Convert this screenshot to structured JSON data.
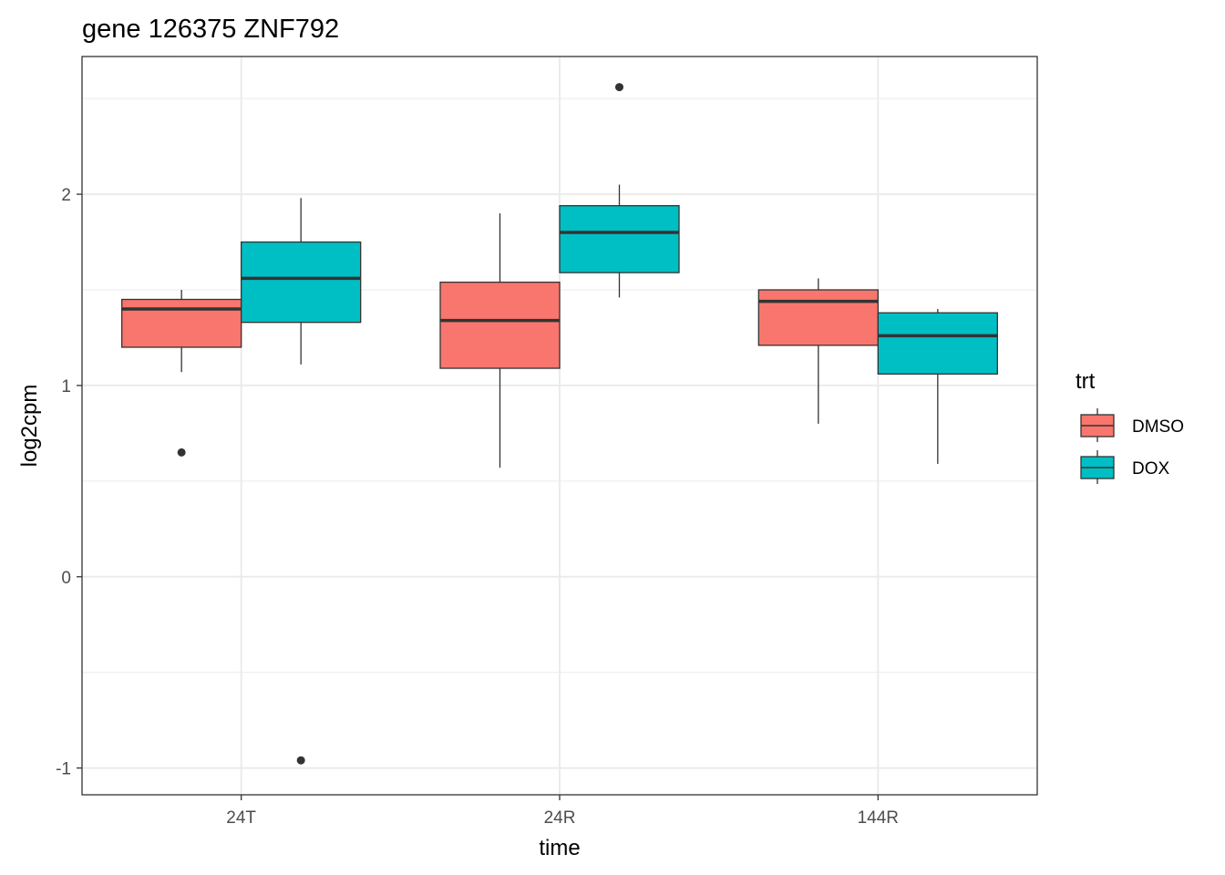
{
  "chart_data": {
    "type": "box",
    "title": "gene 126375 ZNF792",
    "xlabel": "time",
    "ylabel": "log2cpm",
    "categories": [
      "24T",
      "24R",
      "144R"
    ],
    "ylim": [
      -1.14,
      2.72
    ],
    "yticks": [
      -1,
      0,
      1,
      2
    ],
    "ytick_labels": [
      "-1",
      "0",
      "1",
      "2"
    ],
    "grid": true,
    "legend": {
      "title": "trt",
      "placement": "right"
    },
    "series": [
      {
        "name": "DMSO",
        "color": "#F8766D",
        "boxes": [
          {
            "category": "24T",
            "whisker_low": 1.07,
            "q1": 1.2,
            "median": 1.4,
            "q3": 1.45,
            "whisker_high": 1.5,
            "outliers": [
              0.65
            ]
          },
          {
            "category": "24R",
            "whisker_low": 0.57,
            "q1": 1.09,
            "median": 1.34,
            "q3": 1.54,
            "whisker_high": 1.9,
            "outliers": []
          },
          {
            "category": "144R",
            "whisker_low": 0.8,
            "q1": 1.21,
            "median": 1.44,
            "q3": 1.5,
            "whisker_high": 1.56,
            "outliers": []
          }
        ]
      },
      {
        "name": "DOX",
        "color": "#00BFC4",
        "boxes": [
          {
            "category": "24T",
            "whisker_low": 1.11,
            "q1": 1.33,
            "median": 1.56,
            "q3": 1.75,
            "whisker_high": 1.98,
            "outliers": [
              -0.96
            ]
          },
          {
            "category": "24R",
            "whisker_low": 1.46,
            "q1": 1.59,
            "median": 1.8,
            "q3": 1.94,
            "whisker_high": 2.05,
            "outliers": [
              2.56
            ]
          },
          {
            "category": "144R",
            "whisker_low": 0.59,
            "q1": 1.06,
            "median": 1.26,
            "q3": 1.38,
            "whisker_high": 1.4,
            "outliers": []
          }
        ]
      }
    ]
  }
}
